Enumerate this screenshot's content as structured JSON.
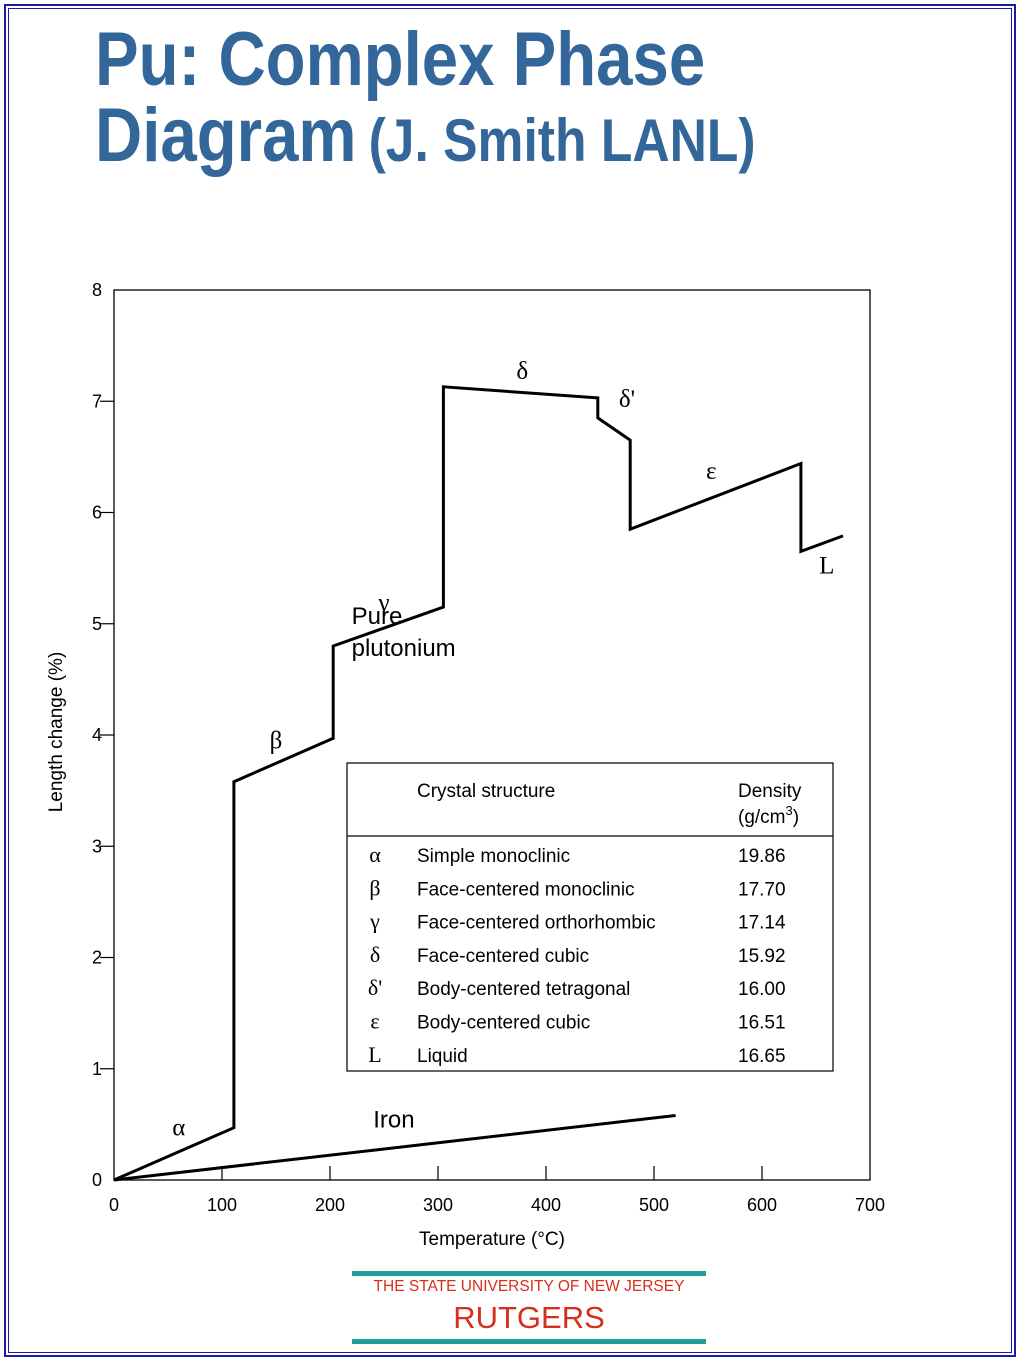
{
  "slide": {
    "title_line1": "Pu: Complex Phase",
    "title_line2": "Diagram",
    "title_credit": "(J. Smith LANL)"
  },
  "chart_data": {
    "type": "line",
    "xlabel": "Temperature (°C)",
    "ylabel": "Length change (%)",
    "xlim": [
      0,
      700
    ],
    "ylim": [
      0,
      8
    ],
    "x_ticks": [
      "0",
      "100",
      "200",
      "300",
      "400",
      "500",
      "600",
      "700"
    ],
    "y_ticks": [
      "0",
      "1",
      "2",
      "3",
      "4",
      "5",
      "6",
      "7",
      "8"
    ],
    "grid": false,
    "series": [
      {
        "name": "Pure plutonium",
        "points": [
          [
            0,
            0
          ],
          [
            111,
            0.47
          ],
          [
            111,
            3.58
          ],
          [
            203,
            3.97
          ],
          [
            203,
            4.8
          ],
          [
            305,
            5.15
          ],
          [
            305,
            7.13
          ],
          [
            448,
            7.03
          ],
          [
            448,
            6.85
          ],
          [
            478,
            6.65
          ],
          [
            478,
            5.85
          ],
          [
            636,
            6.44
          ],
          [
            636,
            5.65
          ],
          [
            675,
            5.79
          ]
        ]
      },
      {
        "name": "Iron",
        "points": [
          [
            0,
            0
          ],
          [
            520,
            0.58
          ]
        ]
      }
    ],
    "series_labels": [
      {
        "text": "Pure",
        "x": 220,
        "y": 5.0
      },
      {
        "text": "plutonium",
        "x": 220,
        "y": 4.71
      },
      {
        "text": "Iron",
        "x": 240,
        "y": 0.47
      }
    ],
    "phase_labels": [
      {
        "text": "α",
        "x": 60,
        "y": 0.4
      },
      {
        "text": "β",
        "x": 150,
        "y": 3.88
      },
      {
        "text": "γ",
        "x": 250,
        "y": 5.12
      },
      {
        "text": "δ",
        "x": 378,
        "y": 7.2
      },
      {
        "text": "δ'",
        "x": 475,
        "y": 6.95
      },
      {
        "text": "ε",
        "x": 553,
        "y": 6.3
      },
      {
        "text": "L",
        "x": 660,
        "y": 5.45
      }
    ],
    "annotations": {
      "table": {
        "header_structure": "Crystal structure",
        "header_density_line1": "Density",
        "header_density_line2": "(g/cm",
        "header_density_sup": "3",
        "header_density_close": ")",
        "rows": [
          {
            "phase": "α",
            "structure": "Simple monoclinic",
            "density": "19.86"
          },
          {
            "phase": "β",
            "structure": "Face-centered monoclinic",
            "density": "17.70"
          },
          {
            "phase": "γ",
            "structure": "Face-centered orthorhombic",
            "density": "17.14"
          },
          {
            "phase": "δ",
            "structure": "Face-centered cubic",
            "density": "15.92"
          },
          {
            "phase": "δ'",
            "structure": "Body-centered tetragonal",
            "density": "16.00"
          },
          {
            "phase": "ε",
            "structure": "Body-centered cubic",
            "density": "16.51"
          },
          {
            "phase": "L",
            "structure": "Liquid",
            "density": "16.65"
          }
        ]
      }
    }
  },
  "footer": {
    "university": "THE STATE UNIVERSITY OF NEW JERSEY",
    "name": "RUTGERS",
    "bar_color": "#1e9e96",
    "text_color": "#d62f1f"
  },
  "colors": {
    "title": "#336699",
    "frame": "#1a1aa8"
  }
}
